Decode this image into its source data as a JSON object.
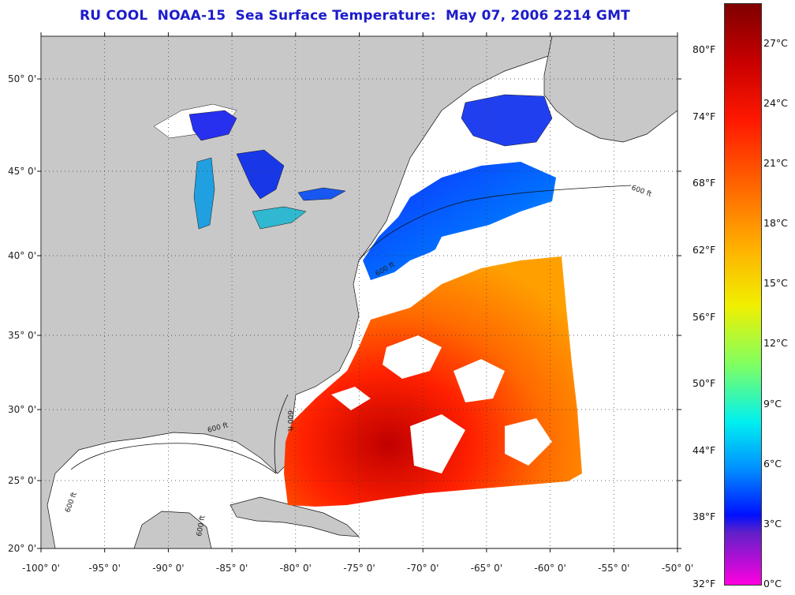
{
  "title": "RU COOL  NOAA-15  Sea Surface Temperature:  May 07, 2006 2214 GMT",
  "map": {
    "lon_range": [
      -100,
      -50
    ],
    "lat_range": [
      20,
      52.5
    ],
    "lon_ticks": [
      "-100° 0'",
      "-95° 0'",
      "-90° 0'",
      "-85° 0'",
      "-80° 0'",
      "-75° 0'",
      "-70° 0'",
      "-65° 0'",
      "-60° 0'",
      "-55° 0'",
      "-50° 0'"
    ],
    "lat_ticks": [
      "50° 0'",
      "45° 0'",
      "40° 0'",
      "35° 0'",
      "30° 0'",
      "25° 0'",
      "20° 0'"
    ],
    "grid": "dotted",
    "land_color": "#c8c8c8",
    "cloud_color": "#ffffff",
    "isobath_labels": [
      "600 ft",
      "600 ft",
      "600 ft",
      "600 ft",
      "600 ft",
      "600 ft"
    ]
  },
  "colorbar": {
    "fahrenheit": [
      "80°F",
      "74°F",
      "68°F",
      "62°F",
      "56°F",
      "50°F",
      "44°F",
      "38°F",
      "32°F"
    ],
    "celsius": [
      "27°C",
      "24°C",
      "21°C",
      "18°C",
      "15°C",
      "12°C",
      "9°C",
      "6°C",
      "3°C",
      "0°C"
    ],
    "range_c": [
      0,
      29
    ]
  }
}
